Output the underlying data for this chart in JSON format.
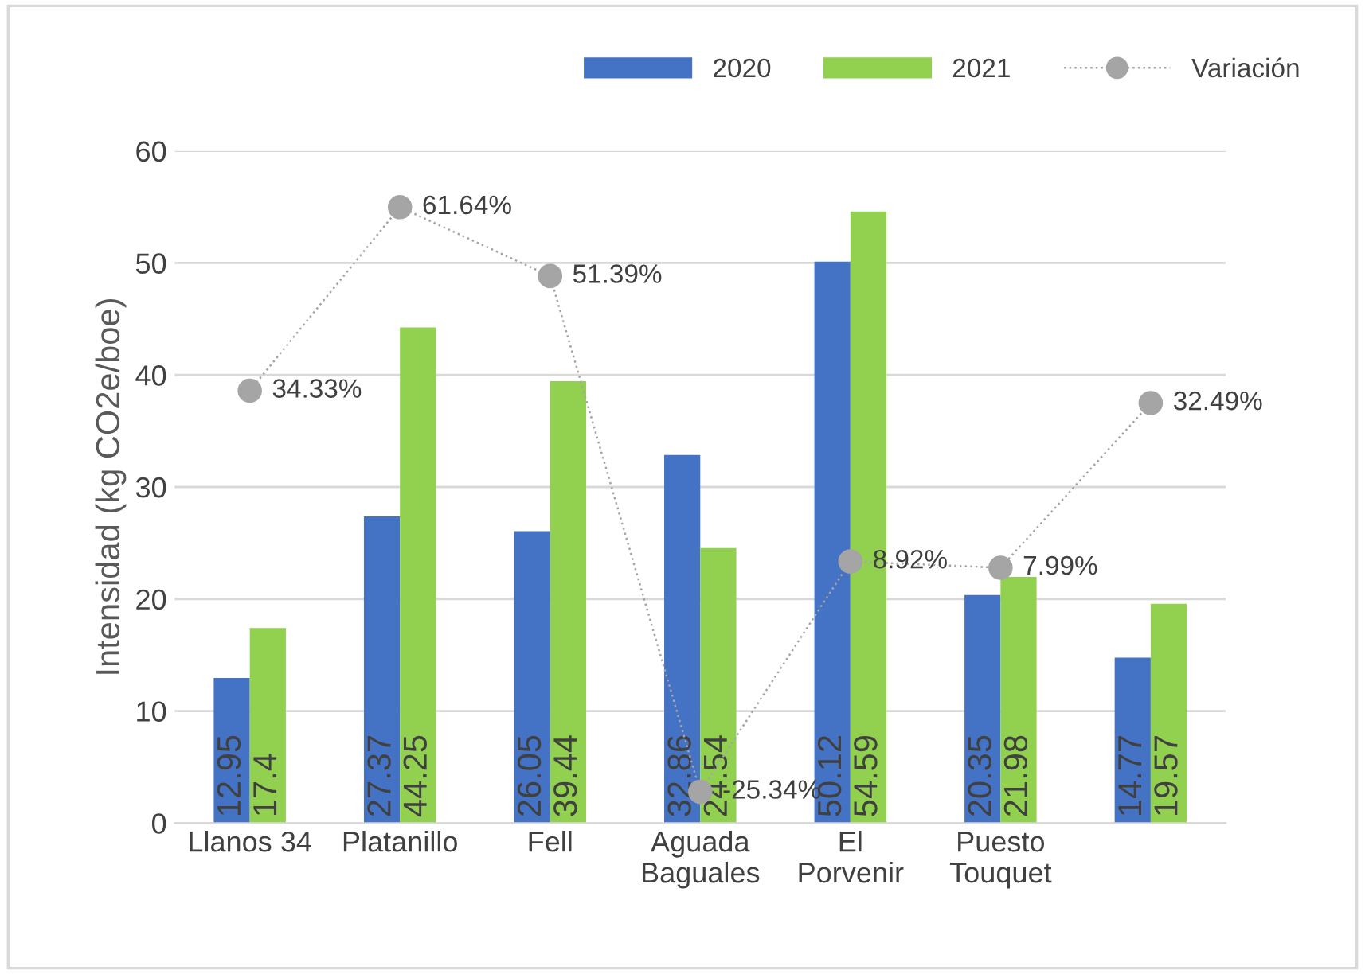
{
  "chart_data": {
    "type": "bar",
    "ylabel": "Intensidad (kg CO2e/boe)",
    "categories": [
      "Llanos 34",
      "Platanillo",
      "Fell",
      "Aguada\nBaguales",
      "El\nPorvenir",
      "Puesto\nTouquet",
      null
    ],
    "series": [
      {
        "name": "2020",
        "color": "#4472c4",
        "values": [
          12.95,
          27.37,
          26.05,
          32.86,
          50.12,
          20.35,
          14.77
        ],
        "value_labels": [
          "12.95",
          "27.37",
          "26.05",
          "32.86",
          "50.12",
          "20.35",
          "14.77"
        ]
      },
      {
        "name": "2021",
        "color": "#92d050",
        "values": [
          17.4,
          44.25,
          39.44,
          24.54,
          54.59,
          21.98,
          19.57
        ],
        "value_labels": [
          "17.4",
          "44.25",
          "39.44",
          "24.54",
          "54.59",
          "21.98",
          "19.57"
        ]
      },
      {
        "name": "Variación",
        "type": "line",
        "axis": "y2",
        "color": "#a5a5a5",
        "marker": "circle",
        "line_style": "dotted",
        "values": [
          34.33,
          61.64,
          51.39,
          -25.34,
          8.92,
          7.99,
          32.49
        ],
        "value_labels": [
          "34.33%",
          "61.64%",
          "51.39%",
          "-25.34%",
          "8.92%",
          "7.99%",
          "32.49%"
        ]
      }
    ],
    "ylim": [
      0,
      60
    ],
    "yticks": [
      0,
      10,
      20,
      30,
      40,
      50,
      60
    ],
    "y2lim": [
      -30,
      70
    ],
    "tick_labels": "xy",
    "grid": "y",
    "legend": "top right"
  }
}
